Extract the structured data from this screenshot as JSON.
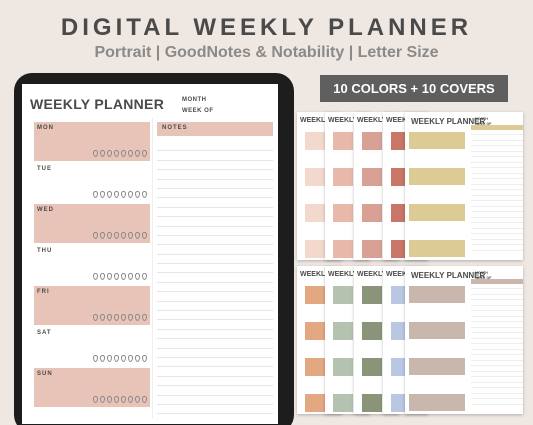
{
  "header": {
    "title": "DIGITAL WEEKLY PLANNER",
    "subtitle": "Portrait | GoodNotes & Notability | Letter Size"
  },
  "badge": {
    "label": "10 COLORS + 10 COVERS"
  },
  "planner": {
    "title": "WEEKLY PLANNER",
    "month_label": "MONTH",
    "week_label": "WEEK OF",
    "notes_label": "NOTES",
    "accent_color": "#e8c4b8",
    "days": [
      {
        "label": "MON",
        "filled": true
      },
      {
        "label": "TUE",
        "filled": false
      },
      {
        "label": "WED",
        "filled": true
      },
      {
        "label": "THU",
        "filled": false
      },
      {
        "label": "FRI",
        "filled": true
      },
      {
        "label": "SAT",
        "filled": false
      },
      {
        "label": "SUN",
        "filled": true
      }
    ],
    "drop_icon": "water-drop-icon",
    "drop_count": 8
  },
  "mini_sets": [
    {
      "title": "WEEKLY PLANNER",
      "month_label": "MONTH",
      "week_label": "WEEK OF",
      "colors": [
        "#f3d9cd",
        "#e8b9ab",
        "#d9a095",
        "#c97567",
        "#dccb94"
      ]
    },
    {
      "title": "WEEKLY PLANNER",
      "month_label": "MONTH",
      "week_label": "WEEK OF",
      "colors": [
        "#e3a882",
        "#b5c2b0",
        "#8a9478",
        "#b9c7e3",
        "#c9b7ad"
      ]
    }
  ],
  "mini_titles": [
    "WEEKLY",
    "WEEKLY",
    "WEEKLY",
    "WEEKLY"
  ]
}
